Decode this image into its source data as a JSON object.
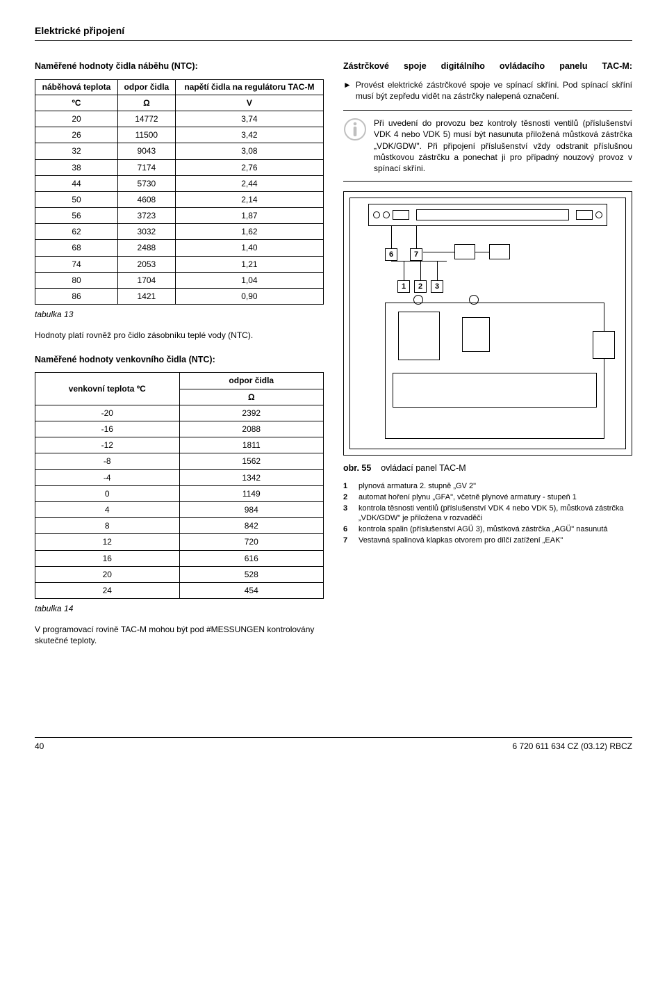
{
  "header": "Elektrické připojení",
  "left": {
    "sub1": "Naměřené hodnoty čidla náběhu (NTC):",
    "table1": {
      "headers": [
        "náběhová teplota",
        "odpor čidla",
        "napětí čidla na regulátoru TAC-M"
      ],
      "units": [
        "ºC",
        "Ω",
        "V"
      ],
      "rows": [
        [
          "20",
          "14772",
          "3,74"
        ],
        [
          "26",
          "11500",
          "3,42"
        ],
        [
          "32",
          "9043",
          "3,08"
        ],
        [
          "38",
          "7174",
          "2,76"
        ],
        [
          "44",
          "5730",
          "2,44"
        ],
        [
          "50",
          "4608",
          "2,14"
        ],
        [
          "56",
          "3723",
          "1,87"
        ],
        [
          "62",
          "3032",
          "1,62"
        ],
        [
          "68",
          "2488",
          "1,40"
        ],
        [
          "74",
          "2053",
          "1,21"
        ],
        [
          "80",
          "1704",
          "1,04"
        ],
        [
          "86",
          "1421",
          "0,90"
        ]
      ],
      "caption": "tabulka 13"
    },
    "note": "Hodnoty platí rovněž pro čidlo zásobníku teplé vody (NTC).",
    "sub2": "Naměřené hodnoty venkovního čidla (NTC):",
    "table2": {
      "headers": [
        "venkovní teplota ºC",
        "odpor čidla"
      ],
      "unit2": "Ω",
      "rows": [
        [
          "-20",
          "2392"
        ],
        [
          "-16",
          "2088"
        ],
        [
          "-12",
          "1811"
        ],
        [
          "-8",
          "1562"
        ],
        [
          "-4",
          "1342"
        ],
        [
          "0",
          "1149"
        ],
        [
          "4",
          "984"
        ],
        [
          "8",
          "842"
        ],
        [
          "12",
          "720"
        ],
        [
          "16",
          "616"
        ],
        [
          "20",
          "528"
        ],
        [
          "24",
          "454"
        ]
      ],
      "caption": "tabulka 14"
    },
    "footnote": "V programovací rovině TAC-M mohou být pod #MESSUNGEN kontrolovány skutečné teploty."
  },
  "right": {
    "title": "Zástrčkové spoje digitálního ovládacího panelu TAC-M:",
    "bullet1": "Provést elektrické zástrčkové spoje ve spínací skříni. Pod spínací skříní musí být zepředu vidět na zástrčky nalepená označení.",
    "info": "Při uvedení do provozu bez kontroly těsnosti ventilů (příslušenství VDK 4 nebo VDK 5) musí být nasunuta přiložená můstková zástrčka „VDK/GDW\". Při připojení příslušenství vždy odstranit příslušnou můstkovou zástrčku a ponechat ji pro případný nouzový provoz v spínací skříni.",
    "badges": {
      "b1": "1",
      "b2": "2",
      "b3": "3",
      "b6": "6",
      "b7": "7"
    },
    "fig_label": "obr. 55",
    "fig_caption": "ovládací panel TAC-M",
    "legend": [
      {
        "n": "1",
        "t": "plynová armatura 2. stupně „GV 2\""
      },
      {
        "n": "2",
        "t": "automat hoření plynu „GFA\", včetně plynové armatury - stupeň 1"
      },
      {
        "n": "3",
        "t": "kontrola těsnosti ventilů (příslušenství VDK 4 nebo VDK 5), můstková zástrčka „VDK/GDW\" je přiložena v rozvaděči"
      },
      {
        "n": "6",
        "t": "kontrola spalin (příslušenství AGÜ 3), můstková zástrčka „AGÜ\" nasunutá"
      },
      {
        "n": "7",
        "t": "Vestavná spalinová klapkas otvorem pro dílčí zatížení „EAK\""
      }
    ]
  },
  "footer": {
    "page": "40",
    "doc": "6 720 611 634 CZ (03.12) RBCZ"
  }
}
